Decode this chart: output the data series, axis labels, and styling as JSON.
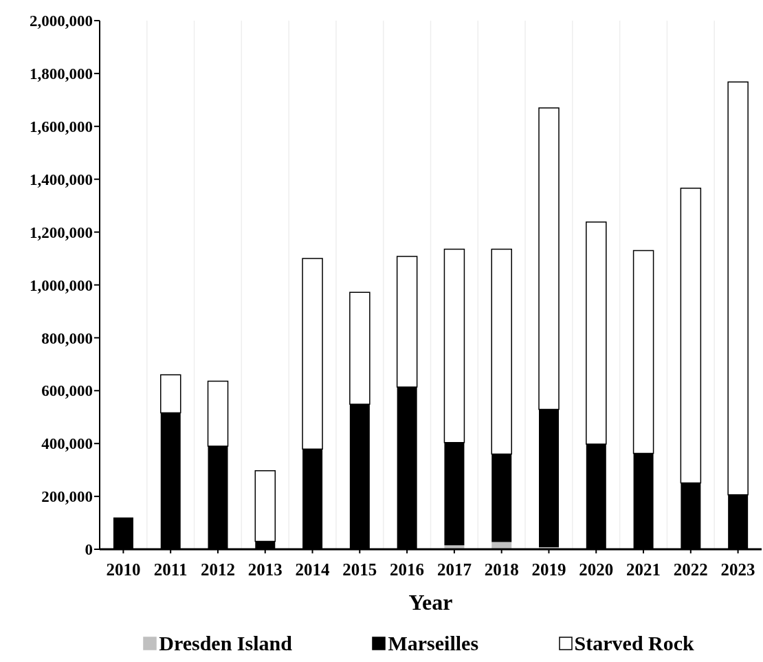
{
  "chart_data": {
    "type": "bar",
    "stacked": true,
    "xlabel": "Year",
    "categories": [
      "2010",
      "2011",
      "2012",
      "2013",
      "2014",
      "2015",
      "2016",
      "2017",
      "2018",
      "2019",
      "2020",
      "2021",
      "2022",
      "2023"
    ],
    "series": [
      {
        "name": "Dresden  Island",
        "color": "#c0c0c0",
        "values": [
          0,
          0,
          0,
          0,
          0,
          null,
          null,
          15000,
          27000,
          8000,
          0,
          0,
          0,
          0
        ]
      },
      {
        "name": "Marseilles",
        "color": "#000000",
        "values": [
          120000,
          516000,
          390000,
          30000,
          379000,
          549000,
          614000,
          389000,
          333000,
          521000,
          398000,
          363000,
          251000,
          206000
        ]
      },
      {
        "name": "Starved Rock",
        "color": "#ffffff",
        "values": [
          0,
          144000,
          246000,
          267000,
          721000,
          423000,
          494000,
          731000,
          775000,
          1141000,
          840000,
          767000,
          1115000,
          1562000
        ]
      }
    ],
    "ylim": [
      0,
      2000000
    ],
    "yticks": [
      0,
      {
        "value": 200000,
        "label": "200,000"
      },
      {
        "value": 400000,
        "label": "400,000"
      },
      {
        "value": 600000,
        "label": "600,000"
      },
      {
        "value": 800000,
        "label": "800,000"
      },
      {
        "value": 1000000,
        "label": "1,000,000"
      },
      {
        "value": 1200000,
        "label": "1,200,000"
      },
      {
        "value": 1400000,
        "label": "1,400,000"
      },
      {
        "value": 1600000,
        "label": "1,600,000"
      },
      {
        "value": 1800000,
        "label": "1,800,000"
      },
      {
        "value": 2000000,
        "label": "2,000,000"
      }
    ],
    "grid": "x",
    "legend": "bottom"
  }
}
